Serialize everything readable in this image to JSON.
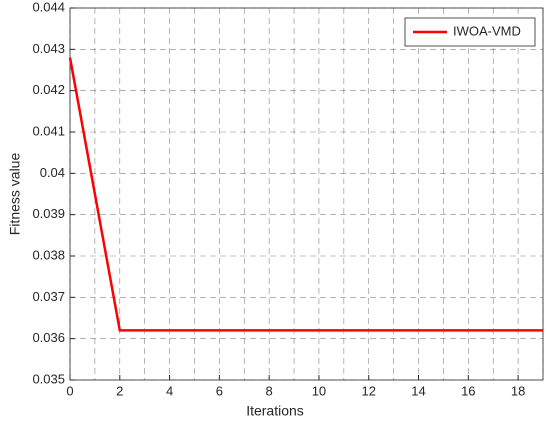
{
  "chart_data": {
    "type": "line",
    "xlabel": "Iterations",
    "ylabel": "Fitness value",
    "x": [
      0,
      1,
      2,
      3,
      4,
      5,
      6,
      7,
      8,
      9,
      10,
      11,
      12,
      13,
      14,
      15,
      16,
      17,
      18,
      19
    ],
    "series": [
      {
        "name": "IWOA-VMD",
        "color": "#ff0000",
        "values": [
          0.0428,
          0.0395,
          0.0362,
          0.0362,
          0.0362,
          0.0362,
          0.0362,
          0.0362,
          0.0362,
          0.0362,
          0.0362,
          0.0362,
          0.0362,
          0.0362,
          0.0362,
          0.0362,
          0.0362,
          0.0362,
          0.0362,
          0.0362
        ]
      }
    ],
    "xlim": [
      0,
      19
    ],
    "xticks": [
      0,
      2,
      4,
      6,
      8,
      10,
      12,
      14,
      16,
      18
    ],
    "xgrid": [
      0,
      1,
      2,
      3,
      4,
      5,
      6,
      7,
      8,
      9,
      10,
      11,
      12,
      13,
      14,
      15,
      16,
      17,
      18,
      19
    ],
    "ylim": [
      0.035,
      0.044
    ],
    "yticks": [
      0.035,
      0.036,
      0.037,
      0.038,
      0.039,
      0.04,
      0.041,
      0.042,
      0.043,
      0.044
    ],
    "grid": true,
    "legend": "top-right"
  }
}
